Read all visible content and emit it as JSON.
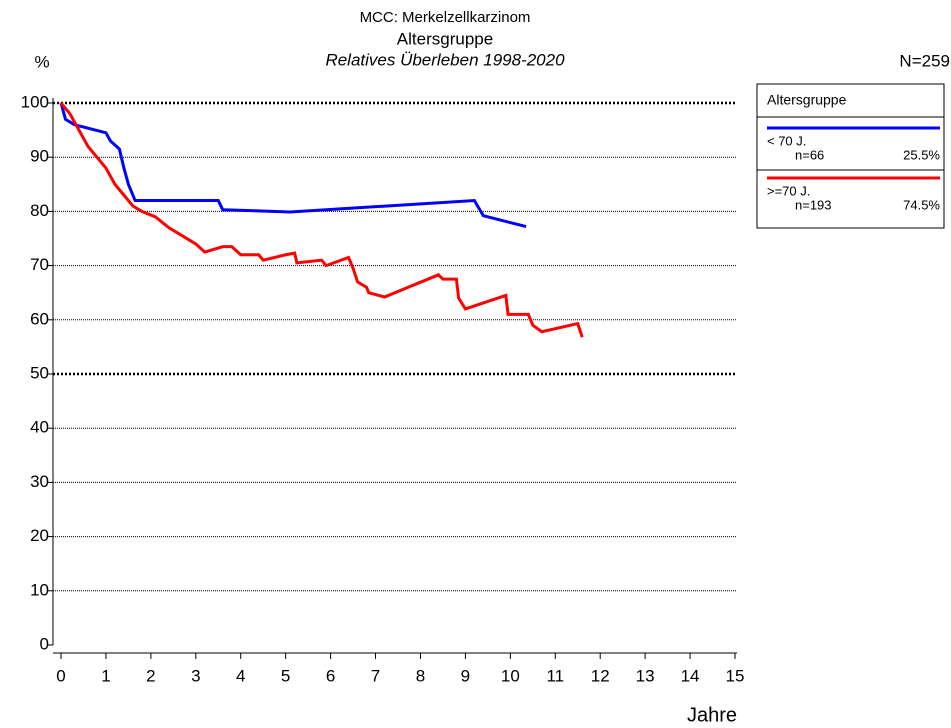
{
  "chart_data": {
    "type": "line",
    "title": "MCC: Merkelzellkarzinom",
    "subtitle": "Altersgruppe",
    "subtitle2": "Relatives Überleben 1998-2020",
    "y_label": "%",
    "x_label": "Jahre",
    "total": "N=259",
    "legend_title": "Altersgruppe",
    "xlim": [
      0,
      15
    ],
    "xticks": [
      0,
      1,
      2,
      3,
      4,
      5,
      6,
      7,
      8,
      9,
      10,
      11,
      12,
      13,
      14,
      15
    ],
    "ylim": [
      0,
      100
    ],
    "yticks": [
      0,
      10,
      20,
      30,
      40,
      50,
      60,
      70,
      80,
      90,
      100
    ],
    "grid": true,
    "bold_grid": [
      50,
      100
    ],
    "legend": "right",
    "series": [
      {
        "name": "< 70 J.",
        "n": "n=66",
        "percent": "25.5%",
        "color": "#0000ff",
        "x": [
          0,
          0.1,
          0.3,
          1,
          1.1,
          1.3,
          1.4,
          1.5,
          1.65,
          3.5,
          3.6,
          5.1,
          9.2,
          9.4,
          10.35
        ],
        "values": [
          100,
          97,
          96,
          94.5,
          93,
          91.5,
          88,
          85,
          82,
          82,
          80.3,
          79.9,
          82,
          79.2,
          77.2
        ]
      },
      {
        "name": ">=70 J.",
        "n": "n=193",
        "percent": "74.5%",
        "color": "#ff0000",
        "x": [
          0,
          0.2,
          0.4,
          0.6,
          0.8,
          1,
          1.2,
          1.4,
          1.6,
          1.8,
          2.1,
          2.4,
          2.7,
          3,
          3.2,
          3.6,
          3.8,
          4,
          4.4,
          4.5,
          5,
          5.2,
          5.25,
          5.8,
          5.9,
          6.4,
          6.5,
          6.6,
          6.8,
          6.85,
          7.2,
          8.4,
          8.5,
          8.8,
          8.85,
          9,
          9.9,
          9.95,
          10.4,
          10.5,
          10.7,
          11.5,
          11.6
        ],
        "values": [
          100,
          98,
          95,
          92,
          90,
          88,
          85,
          83,
          81,
          80,
          79,
          77,
          75.5,
          74,
          72.5,
          73.5,
          73.5,
          72,
          72,
          71,
          72,
          72.3,
          70.5,
          71,
          70,
          71.5,
          69.5,
          67,
          66,
          65,
          64.2,
          68.3,
          67.5,
          67.5,
          64,
          62,
          64.5,
          61,
          61,
          59,
          57.8,
          59.3,
          56.8
        ]
      }
    ]
  }
}
